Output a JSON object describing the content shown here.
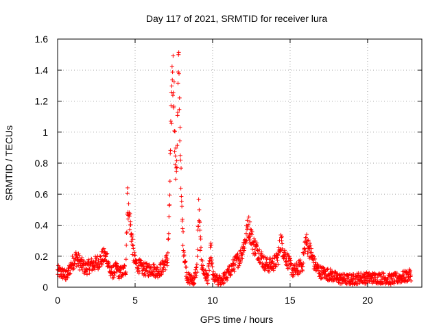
{
  "chart_data": {
    "type": "scatter",
    "title": "Day 117 of 2021, SRMTID for receiver lura",
    "xlabel": "GPS time / hours",
    "ylabel": "SRMTID / TECUs",
    "xlim": [
      0,
      23.5
    ],
    "ylim": [
      0,
      1.6
    ],
    "grid": true,
    "marker": "+",
    "series": [
      {
        "name": "SRMTID",
        "color": "#ff0000",
        "anchors_x": [
          0.0,
          0.3,
          0.6,
          0.9,
          1.2,
          1.5,
          1.8,
          2.1,
          2.4,
          2.7,
          3.0,
          3.2,
          3.4,
          3.6,
          3.8,
          4.0,
          4.2,
          4.4,
          4.5,
          4.6,
          4.7,
          4.8,
          4.9,
          5.0,
          5.2,
          5.5,
          5.8,
          6.1,
          6.4,
          6.7,
          6.9,
          7.1,
          7.2,
          7.3,
          7.4,
          7.5,
          7.6,
          7.7,
          7.8,
          7.9,
          8.0,
          8.1,
          8.2,
          8.3,
          8.4,
          8.6,
          8.8,
          9.0,
          9.1,
          9.2,
          9.3,
          9.5,
          9.7,
          9.9,
          10.0,
          10.3,
          10.6,
          10.9,
          11.2,
          11.5,
          11.8,
          12.1,
          12.3,
          12.5,
          12.6,
          12.8,
          13.0,
          13.3,
          13.6,
          13.9,
          14.2,
          14.4,
          14.6,
          14.9,
          15.2,
          15.5,
          15.8,
          16.0,
          16.2,
          16.4,
          16.6,
          16.9,
          17.2,
          17.6,
          18.0,
          18.5,
          19.0,
          19.5,
          20.0,
          20.5,
          21.0,
          21.5,
          22.0,
          22.5,
          22.8
        ],
        "anchors_y": [
          0.1,
          0.09,
          0.07,
          0.15,
          0.19,
          0.15,
          0.12,
          0.14,
          0.15,
          0.17,
          0.2,
          0.19,
          0.09,
          0.1,
          0.12,
          0.09,
          0.1,
          0.12,
          0.58,
          0.47,
          0.4,
          0.3,
          0.2,
          0.16,
          0.14,
          0.12,
          0.11,
          0.12,
          0.1,
          0.12,
          0.15,
          0.18,
          0.45,
          0.95,
          1.42,
          1.3,
          0.75,
          0.85,
          1.42,
          1.0,
          0.5,
          0.3,
          0.18,
          0.1,
          0.06,
          0.05,
          0.04,
          0.13,
          0.5,
          0.3,
          0.15,
          0.08,
          0.06,
          0.25,
          0.07,
          0.04,
          0.05,
          0.07,
          0.12,
          0.16,
          0.2,
          0.3,
          0.4,
          0.33,
          0.28,
          0.25,
          0.22,
          0.16,
          0.14,
          0.15,
          0.18,
          0.3,
          0.22,
          0.16,
          0.1,
          0.12,
          0.15,
          0.3,
          0.26,
          0.2,
          0.14,
          0.1,
          0.09,
          0.08,
          0.06,
          0.05,
          0.05,
          0.06,
          0.06,
          0.06,
          0.06,
          0.05,
          0.06,
          0.07,
          0.08
        ],
        "noise_amplitude": 0.03,
        "points_per_hour": 60
      }
    ]
  }
}
